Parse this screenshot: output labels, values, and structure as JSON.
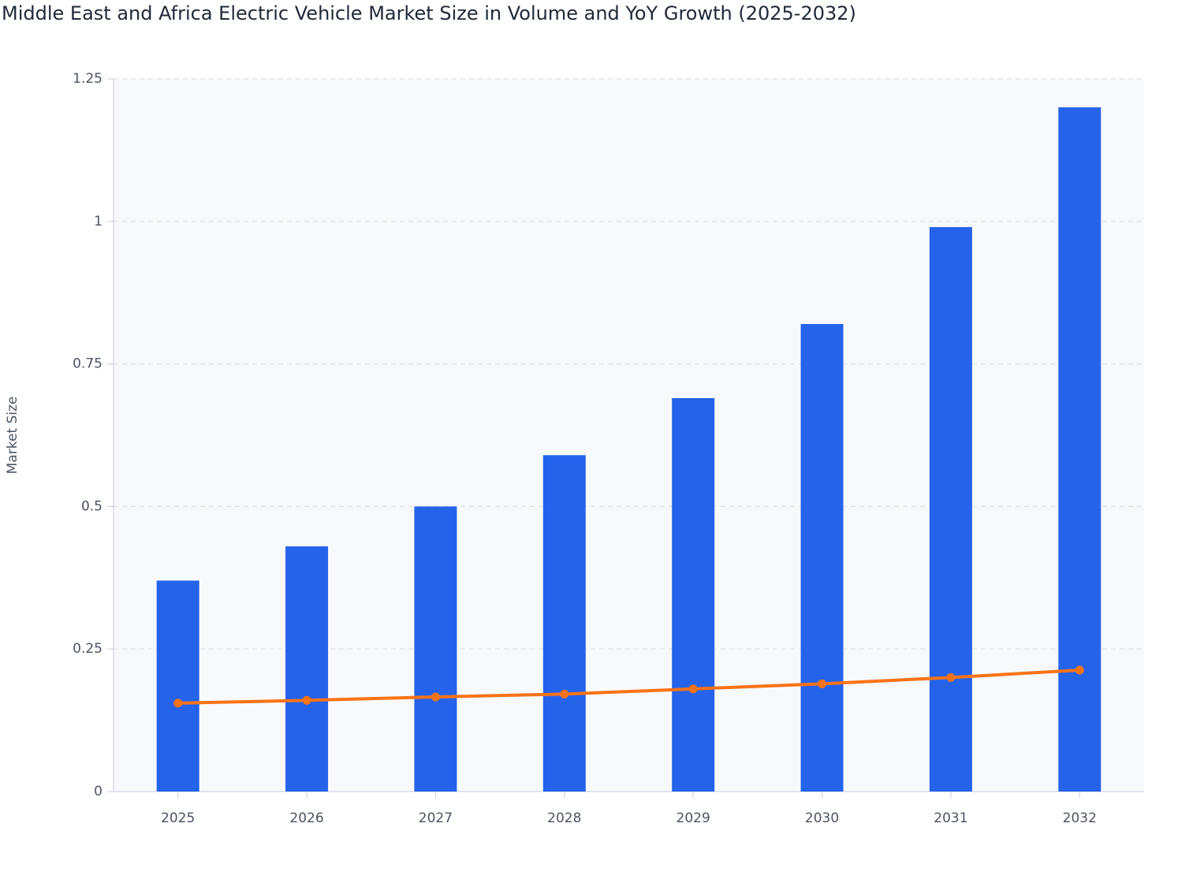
{
  "chart_data": {
    "type": "bar",
    "title": "Middle East and Africa Electric Vehicle Market Size in Volume and YoY Growth (2025-2032)",
    "y_label": "Market Size",
    "categories": [
      "2025",
      "2026",
      "2027",
      "2028",
      "2029",
      "2030",
      "2031",
      "2032"
    ],
    "series": [
      {
        "type": "bar",
        "color": "#2563eb",
        "values": [
          0.37,
          0.43,
          0.5,
          0.59,
          0.69,
          0.82,
          0.99,
          1.2
        ]
      },
      {
        "type": "line",
        "color": "#f97316",
        "values": [
          0.155,
          0.16,
          0.166,
          0.171,
          0.18,
          0.189,
          0.2,
          0.213
        ]
      }
    ],
    "ylim": [
      0,
      1.25
    ],
    "yticks": [
      0,
      0.25,
      0.5,
      0.75,
      1,
      1.25
    ],
    "grid": true
  }
}
